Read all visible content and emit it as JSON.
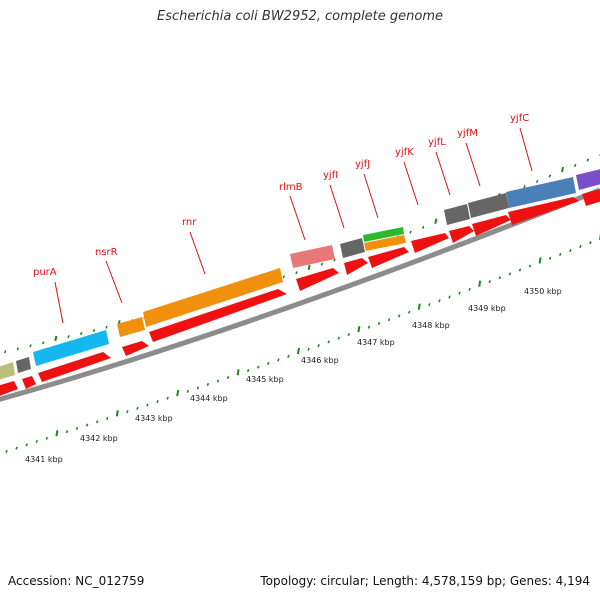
{
  "title": "Escherichia coli BW2952, complete genome",
  "footer": {
    "accession": "Accession: NC_012759",
    "summary": "Topology: circular; Length: 4,578,159 bp; Genes: 4,194"
  },
  "colors": {
    "cds": "#ee1111",
    "backbone": "#8c8c8c",
    "tick": "#1a8a1a",
    "label": "#e01010"
  },
  "gene_labels": [
    "purA",
    "nsrR",
    "rnr",
    "rlmB",
    "yjfI",
    "yjfJ",
    "yjfK",
    "yjfL",
    "yjfM",
    "yjfC"
  ],
  "kbp_labels": [
    "4341 kbp",
    "4342 kbp",
    "4343 kbp",
    "4344 kbp",
    "4345 kbp",
    "4346 kbp",
    "4347 kbp",
    "4348 kbp",
    "4349 kbp",
    "4350 kbp"
  ]
}
